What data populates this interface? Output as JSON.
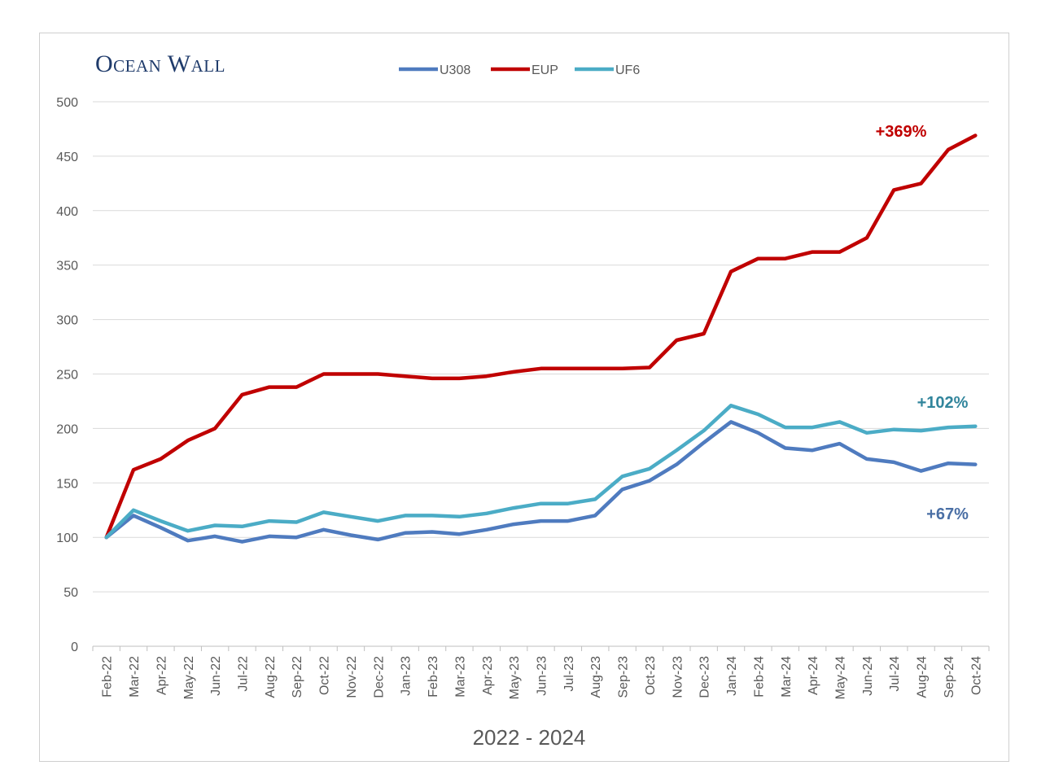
{
  "logo": "Ocean Wall",
  "chart_data": {
    "type": "line",
    "title": "",
    "xlabel": "2022 - 2024",
    "ylabel": "",
    "ylim": [
      0,
      500
    ],
    "yticks": [
      0,
      50,
      100,
      150,
      200,
      250,
      300,
      350,
      400,
      450,
      500
    ],
    "grid": true,
    "legend_position": "top-center",
    "categories": [
      "Feb-22",
      "Mar-22",
      "Apr-22",
      "May-22",
      "Jun-22",
      "Jul-22",
      "Aug-22",
      "Sep-22",
      "Oct-22",
      "Nov-22",
      "Dec-22",
      "Jan-23",
      "Feb-23",
      "Mar-23",
      "Apr-23",
      "May-23",
      "Jun-23",
      "Jul-23",
      "Aug-23",
      "Sep-23",
      "Oct-23",
      "Nov-23",
      "Dec-23",
      "Jan-24",
      "Feb-24",
      "Mar-24",
      "Apr-24",
      "May-24",
      "Jun-24",
      "Jul-24",
      "Aug-24",
      "Sep-24",
      "Oct-24"
    ],
    "series": [
      {
        "name": "U308",
        "color": "#4f7bbf",
        "values": [
          100,
          120,
          109,
          97,
          101,
          96,
          101,
          100,
          107,
          102,
          98,
          104,
          105,
          103,
          107,
          112,
          115,
          115,
          120,
          144,
          152,
          167,
          187,
          206,
          196,
          182,
          180,
          186,
          172,
          169,
          161,
          168,
          167
        ]
      },
      {
        "name": "EUP",
        "color": "#c00000",
        "values": [
          100,
          162,
          172,
          189,
          200,
          231,
          238,
          238,
          250,
          250,
          250,
          248,
          246,
          246,
          248,
          252,
          255,
          255,
          255,
          255,
          256,
          281,
          287,
          344,
          356,
          356,
          362,
          362,
          375,
          419,
          425,
          456,
          469
        ]
      },
      {
        "name": "UF6",
        "color": "#4bacc6",
        "values": [
          100,
          125,
          115,
          106,
          111,
          110,
          115,
          114,
          123,
          119,
          115,
          120,
          120,
          119,
          122,
          127,
          131,
          131,
          135,
          156,
          163,
          180,
          198,
          221,
          213,
          201,
          201,
          206,
          196,
          199,
          198,
          201,
          202
        ]
      }
    ],
    "annotations": [
      {
        "text": "+369%",
        "series": "EUP",
        "color": "#c00000"
      },
      {
        "text": "+102%",
        "series": "UF6",
        "color": "#31859c"
      },
      {
        "text": "+67%",
        "series": "U308",
        "color": "#4a6fa5"
      }
    ]
  }
}
